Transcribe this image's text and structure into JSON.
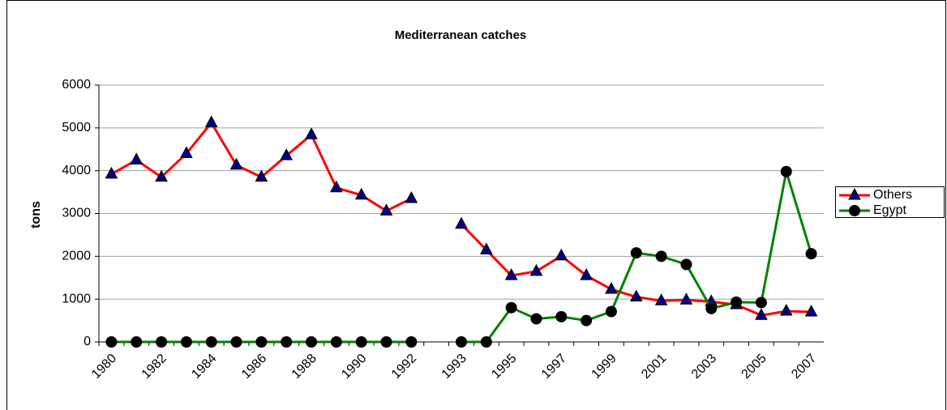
{
  "chart_data": {
    "type": "line",
    "title": "Mediterranean catches",
    "y_label": "tons",
    "categories": [
      "1980",
      null,
      "1982",
      null,
      "1984",
      null,
      "1986",
      null,
      "1988",
      null,
      "1990",
      null,
      "1992",
      null,
      "1993",
      null,
      "1995",
      null,
      "1997",
      null,
      "1999",
      null,
      "2001",
      null,
      "2003",
      null,
      "2005",
      null,
      "2007"
    ],
    "series": [
      {
        "name": "Others",
        "color": "#ff0000",
        "marker": "triangle",
        "marker_color": "#000080",
        "values": [
          3920,
          4250,
          3850,
          4400,
          5120,
          4130,
          3850,
          4350,
          4840,
          3600,
          3430,
          3060,
          3350,
          null,
          2750,
          2150,
          1550,
          1650,
          2010,
          1550,
          1230,
          1050,
          960,
          980,
          940,
          870,
          620,
          720,
          700
        ]
      },
      {
        "name": "Egypt",
        "color": "#008000",
        "marker": "circle",
        "marker_color": "#000000",
        "values": [
          0,
          0,
          0,
          0,
          0,
          0,
          0,
          0,
          0,
          0,
          0,
          0,
          0,
          null,
          0,
          0,
          800,
          540,
          590,
          500,
          710,
          2080,
          2000,
          1810,
          780,
          930,
          920,
          3980,
          2060
        ]
      }
    ],
    "ylim": [
      0,
      6000
    ],
    "yticks": [
      0,
      1000,
      2000,
      3000,
      4000,
      5000,
      6000
    ],
    "grid": true,
    "legend": "right"
  }
}
